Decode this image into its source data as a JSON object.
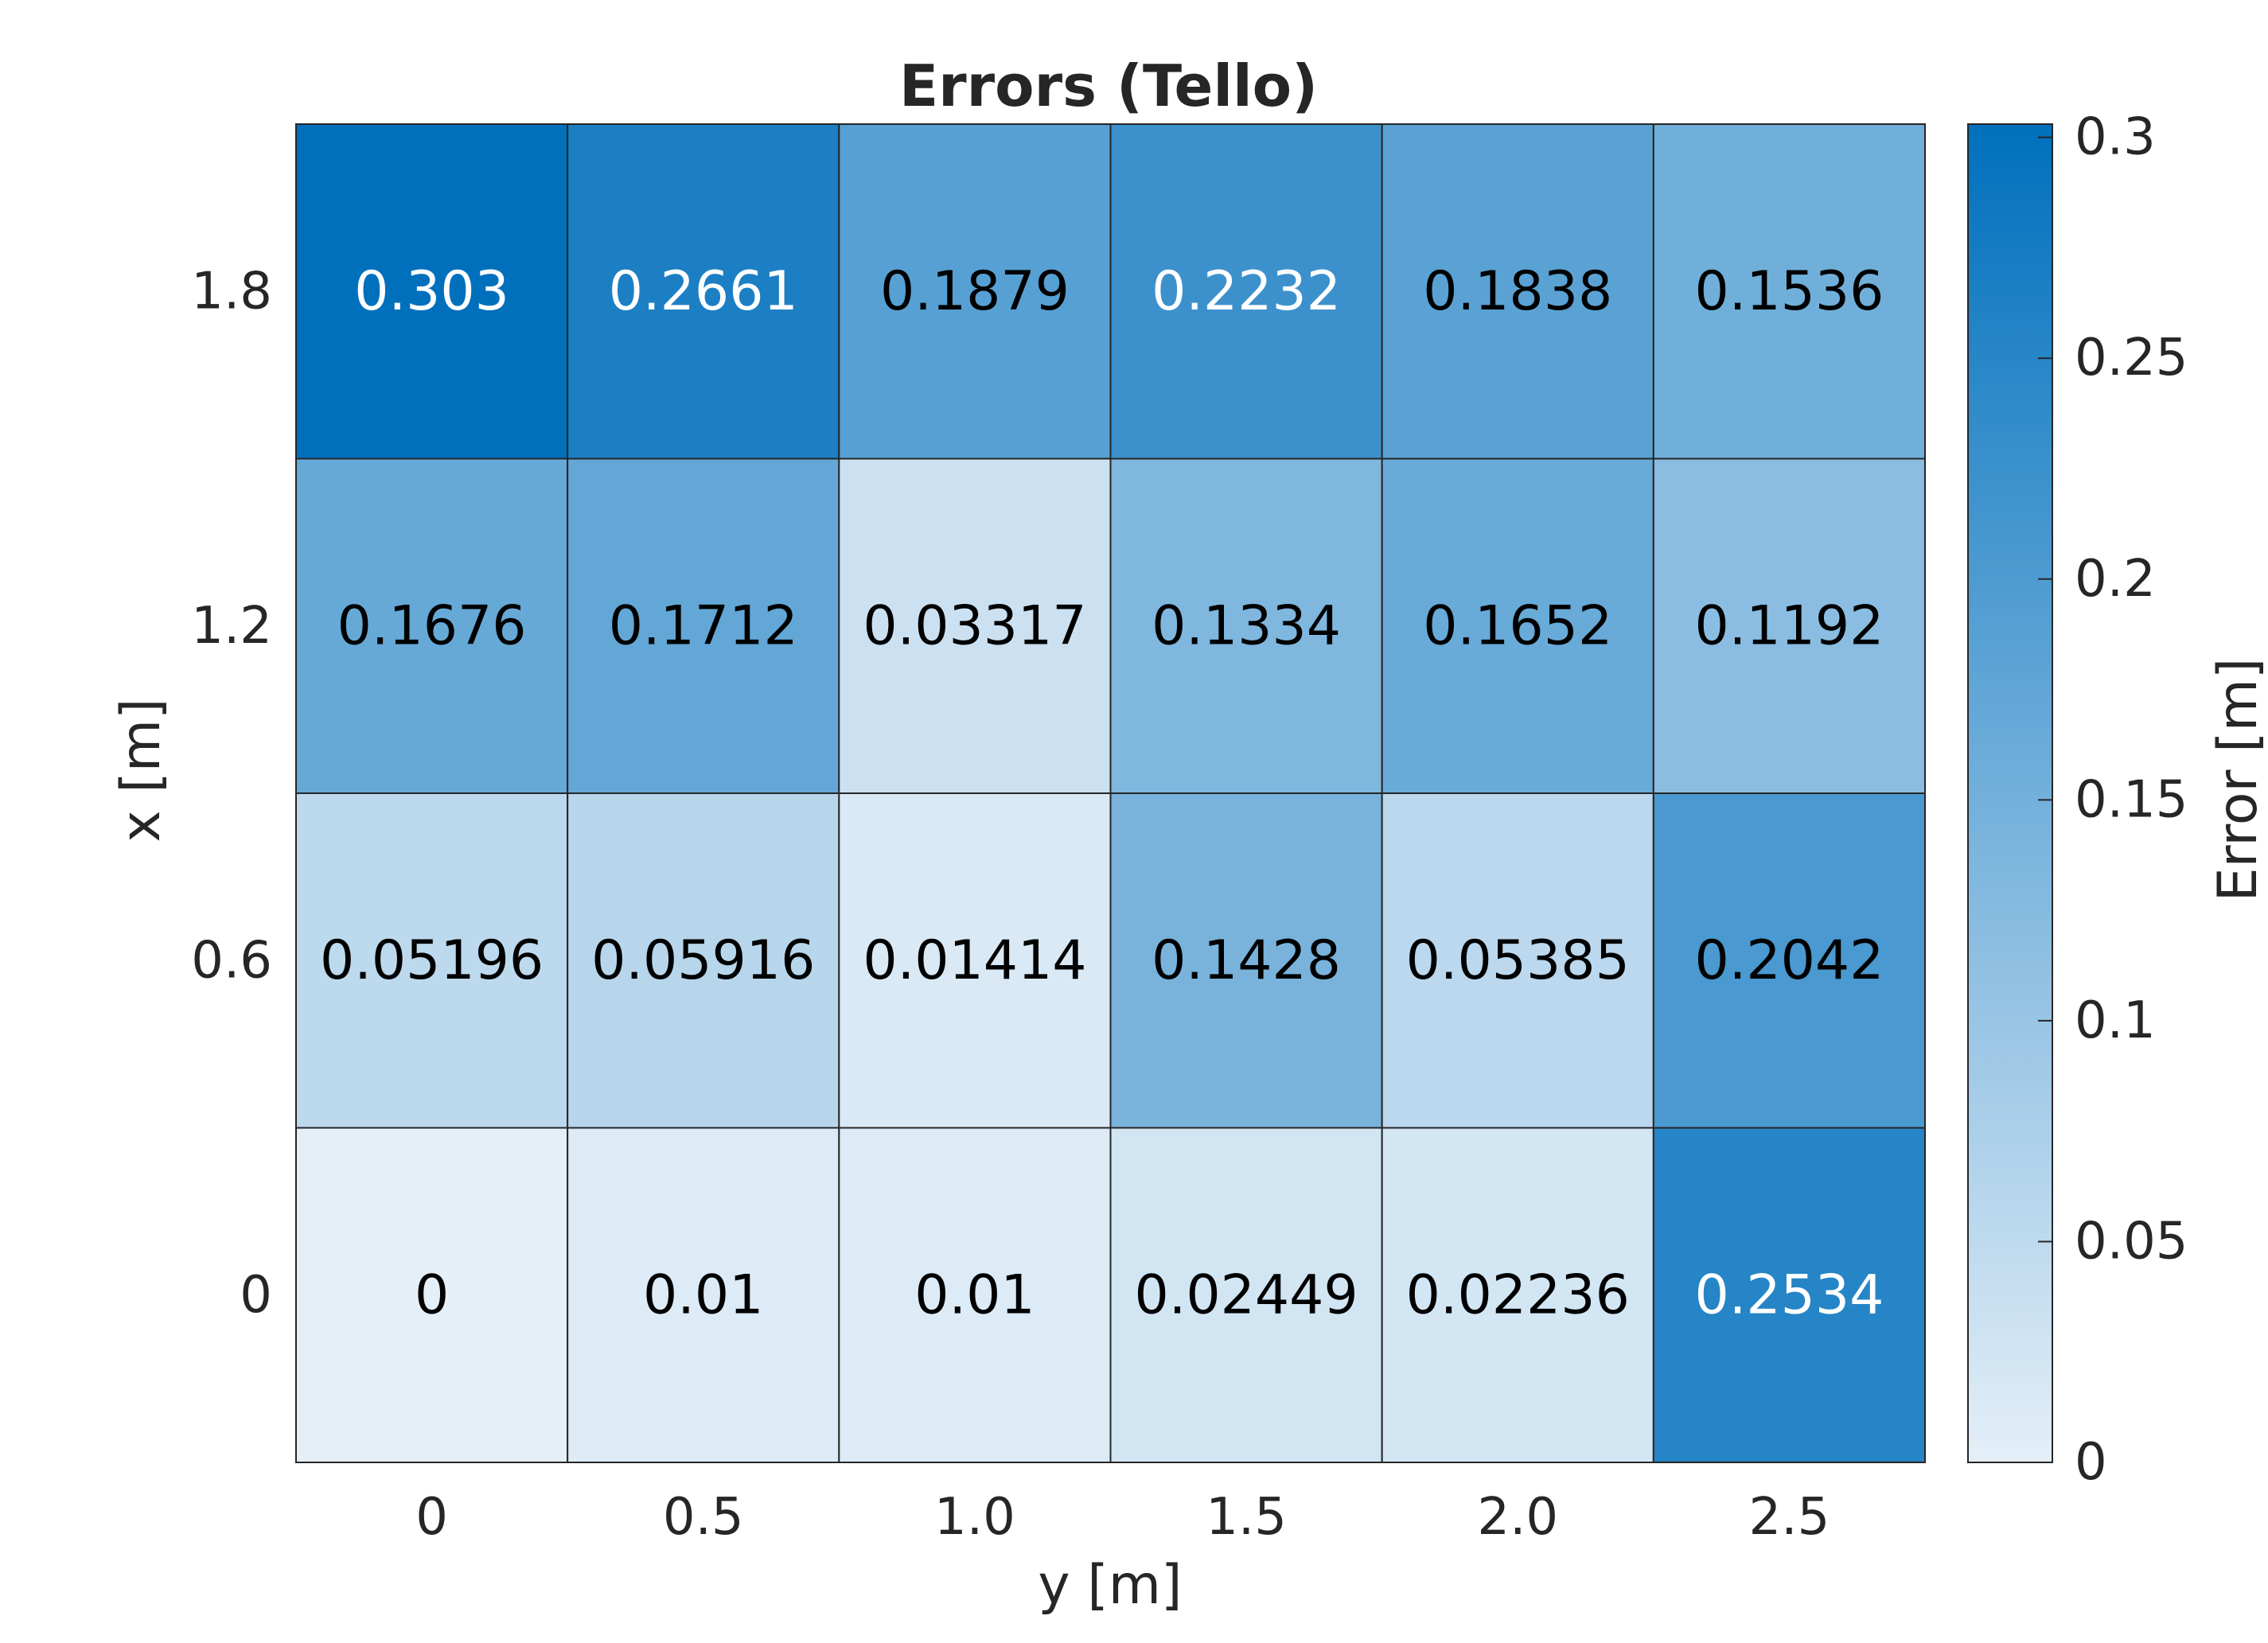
{
  "chart_data": {
    "type": "heatmap",
    "title": "Errors (Tello)",
    "xlabel": "y [m]",
    "ylabel": "x [m]",
    "x_categories": [
      "0",
      "0.5",
      "1.0",
      "1.5",
      "2.0",
      "2.5"
    ],
    "y_categories": [
      "1.8",
      "1.2",
      "0.6",
      "0"
    ],
    "values": [
      [
        0.303,
        0.2661,
        0.1879,
        0.2232,
        0.1838,
        0.1536
      ],
      [
        0.1676,
        0.1712,
        0.03317,
        0.1334,
        0.1652,
        0.1192
      ],
      [
        0.05196,
        0.05916,
        0.01414,
        0.1428,
        0.05385,
        0.2042
      ],
      [
        0,
        0.01,
        0.01,
        0.02449,
        0.02236,
        0.2534
      ]
    ],
    "value_labels": [
      [
        "0.303",
        "0.2661",
        "0.1879",
        "0.2232",
        "0.1838",
        "0.1536"
      ],
      [
        "0.1676",
        "0.1712",
        "0.03317",
        "0.1334",
        "0.1652",
        "0.1192"
      ],
      [
        "0.05196",
        "0.05916",
        "0.01414",
        "0.1428",
        "0.05385",
        "0.2042"
      ],
      [
        "0",
        "0.01",
        "0.01",
        "0.02449",
        "0.02236",
        "0.2534"
      ]
    ],
    "colorbar": {
      "label": "Error [m]",
      "range": [
        0,
        0.303
      ],
      "ticks": [
        0,
        0.05,
        0.1,
        0.15,
        0.2,
        0.25,
        0.3
      ],
      "tick_labels": [
        "0",
        "0.05",
        "0.1",
        "0.15",
        "0.2",
        "0.25",
        "0.3"
      ],
      "color_low": "#e4eff8",
      "color_high": "#0070bd"
    },
    "grid": true,
    "legend": "colorbar-right"
  }
}
